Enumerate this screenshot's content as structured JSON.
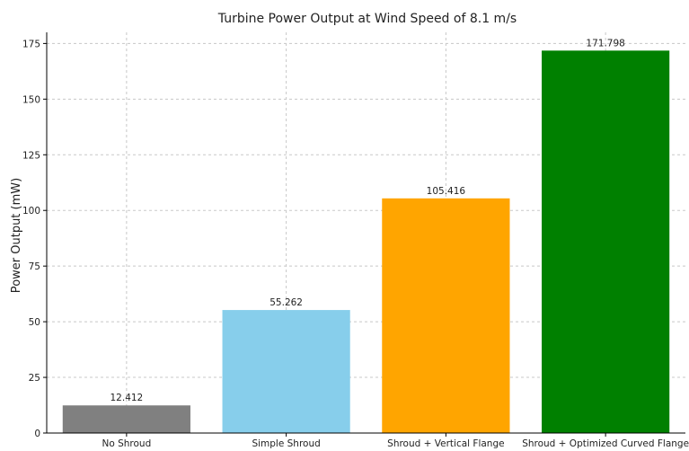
{
  "chart_data": {
    "type": "bar",
    "title": "Turbine Power Output at Wind Speed of 8.1 m/s",
    "xlabel": "",
    "ylabel": "Power Output (mW)",
    "categories": [
      "No Shroud",
      "Simple Shroud",
      "Shroud + Vertical Flange",
      "Shroud + Optimized Curved Flange"
    ],
    "values": [
      12.412,
      55.262,
      105.416,
      171.798
    ],
    "value_labels": [
      "12.412",
      "55.262",
      "105.416",
      "171.798"
    ],
    "colors": [
      "#808080",
      "#87ceeb",
      "#ffa500",
      "#008000"
    ],
    "ylim": [
      0,
      180
    ],
    "yticks": [
      0,
      25,
      50,
      75,
      100,
      125,
      150,
      175
    ],
    "ytick_labels": [
      "0",
      "25",
      "50",
      "75",
      "100",
      "125",
      "150",
      "175"
    ],
    "grid": true
  }
}
